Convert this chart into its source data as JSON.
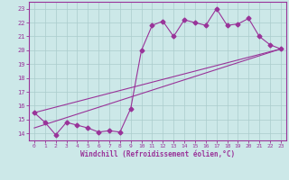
{
  "main_x": [
    0,
    1,
    2,
    3,
    4,
    5,
    6,
    7,
    8,
    9,
    10,
    11,
    12,
    13,
    14,
    15,
    16,
    17,
    18,
    19,
    20,
    21,
    22,
    23
  ],
  "main_y": [
    15.5,
    14.8,
    13.9,
    14.8,
    14.6,
    14.4,
    14.1,
    14.2,
    14.1,
    15.8,
    20.0,
    21.8,
    22.1,
    21.0,
    22.2,
    22.0,
    21.8,
    23.0,
    21.8,
    21.9,
    22.3,
    21.0,
    20.4,
    20.1
  ],
  "line1_x": [
    0,
    23
  ],
  "line1_y": [
    15.5,
    20.1
  ],
  "line2_x": [
    0,
    23
  ],
  "line2_y": [
    14.4,
    20.1
  ],
  "color": "#993399",
  "bg_color": "#cce8e8",
  "grid_color": "#aacccc",
  "xlim": [
    -0.5,
    23.5
  ],
  "ylim": [
    13.5,
    23.5
  ],
  "yticks": [
    14,
    15,
    16,
    17,
    18,
    19,
    20,
    21,
    22,
    23
  ],
  "xticks": [
    0,
    1,
    2,
    3,
    4,
    5,
    6,
    7,
    8,
    9,
    10,
    11,
    12,
    13,
    14,
    15,
    16,
    17,
    18,
    19,
    20,
    21,
    22,
    23
  ],
  "xlabel": "Windchill (Refroidissement éolien,°C)",
  "marker": "D",
  "markersize": 2.5,
  "linewidth": 0.8
}
